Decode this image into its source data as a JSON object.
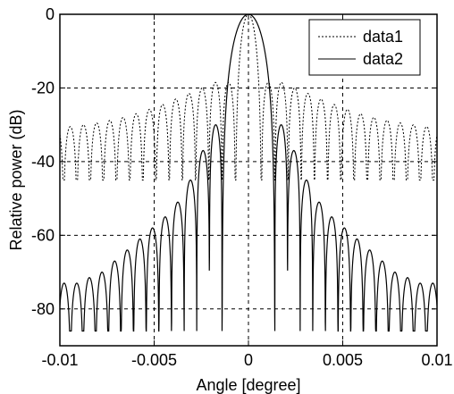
{
  "chart_data": {
    "type": "line",
    "title": "",
    "xlabel": "Angle [degree]",
    "ylabel": "Relative power (dB)",
    "xlim": [
      -0.01,
      0.01
    ],
    "ylim": [
      -90,
      0
    ],
    "xticks": [
      -0.01,
      -0.005,
      0,
      0.005,
      0.01
    ],
    "xtick_labels": [
      "-0.01",
      "-0.005",
      "0",
      "0.005",
      "0.01"
    ],
    "yticks": [
      0,
      -20,
      -40,
      -60,
      -80
    ],
    "ytick_labels": [
      "0",
      "-20",
      "-40",
      "-60",
      "-80"
    ],
    "grid": true,
    "legend_position": "top-right",
    "series": [
      {
        "name": "data1",
        "style": "dotted",
        "color": "#000000",
        "mainlobe_halfwidth": 0.0007,
        "lobe_spacing": 0.0007,
        "sidelobe_peaks": [
          -18.5,
          -18.5,
          -20,
          -21.5,
          -23,
          -24.5,
          -25.8,
          -27,
          -28,
          -28.8,
          -29.5,
          -30,
          -30.5
        ],
        "null_depth": -45
      },
      {
        "name": "data2",
        "style": "solid",
        "color": "#000000",
        "mainlobe_halfwidth": 0.0014,
        "lobe_spacing": 0.00067,
        "sidelobe_peaks": [
          -30,
          -37,
          -45,
          -51,
          -55,
          -58,
          -61,
          -64,
          -67,
          -70,
          -71.5,
          -73
        ],
        "null_depth": -86
      }
    ]
  }
}
